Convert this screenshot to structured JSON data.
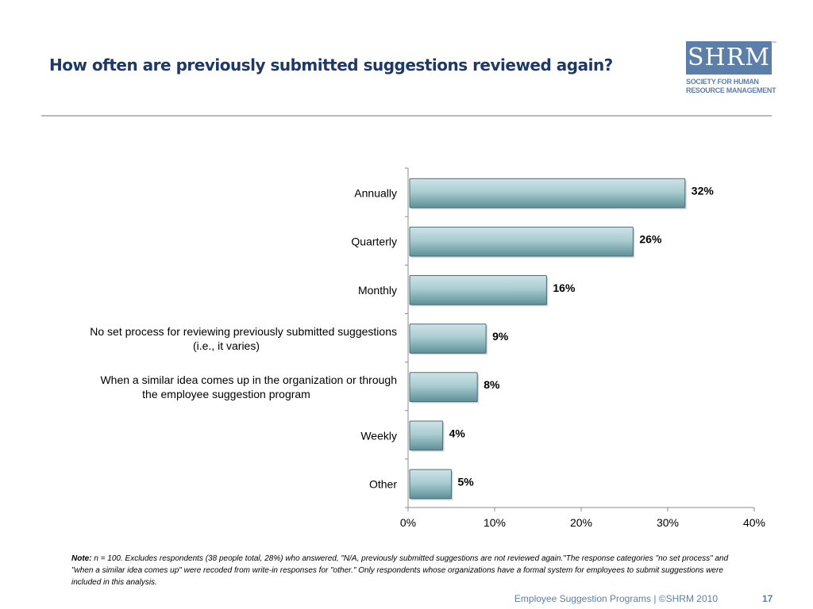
{
  "slide": {
    "title": "How often are previously submitted suggestions reviewed again?",
    "note_label": "Note:",
    "note_text": "n = 100. Excludes respondents (38 people total, 28%) who answered, \"N/A, previously submitted suggestions are not reviewed again.\"The response categories \"no set process\" and \"when a similar idea comes up\" were recoded from write-in responses for \"other.\" Only respondents whose organizations have a formal system for employees to submit suggestions were included in this analysis.",
    "footer": "Employee Suggestion Programs | ©SHRM 2010",
    "page_number": "17"
  },
  "logo": {
    "mark": "SHRM",
    "line1": "SOCIETY FOR HUMAN",
    "line2": "RESOURCE MANAGEMENT",
    "tm": "™"
  },
  "chart_data": {
    "type": "bar",
    "orientation": "horizontal",
    "categories": [
      [
        "Annually"
      ],
      [
        "Quarterly"
      ],
      [
        "Monthly"
      ],
      [
        "No set process for reviewing previously submitted suggestions",
        "(i.e., it varies)"
      ],
      [
        "When a similar idea comes up in the organization or through",
        "the employee suggestion program"
      ],
      [
        "Weekly"
      ],
      [
        "Other"
      ]
    ],
    "values": [
      32,
      26,
      16,
      9,
      8,
      4,
      5
    ],
    "data_labels": [
      "32%",
      "26%",
      "16%",
      "9%",
      "8%",
      "4%",
      "5%"
    ],
    "xlim": [
      0,
      40
    ],
    "x_ticks": [
      0,
      10,
      20,
      30,
      40
    ],
    "x_tick_labels": [
      "0%",
      "10%",
      "20%",
      "30%",
      "40%"
    ],
    "grid": false,
    "legend": "none",
    "colors": {
      "bar_top": "#cfe3e6",
      "bar_mid": "#a9cdd2",
      "bar_bottom": "#5f8f97",
      "bar_stroke": "#4b6e74",
      "axis": "#8c8c8c"
    }
  }
}
